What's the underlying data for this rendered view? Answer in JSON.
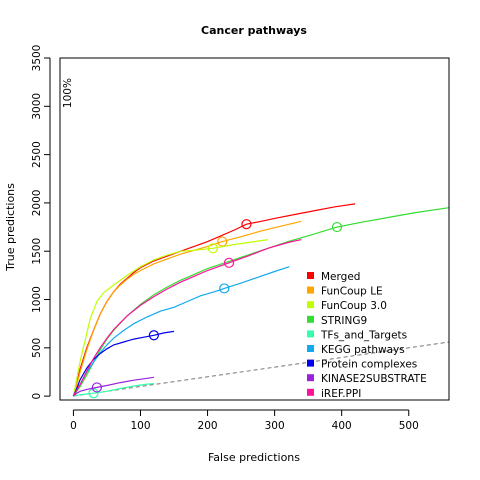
{
  "chart_data": {
    "type": "line",
    "title": "Cancer pathways",
    "xlabel": "False predictions",
    "ylabel": "True predictions",
    "xlim": [
      -20,
      560
    ],
    "ylim": [
      -40,
      3500
    ],
    "xticks": [
      0,
      100,
      200,
      300,
      400,
      500
    ],
    "yticks": [
      0,
      500,
      1000,
      1500,
      2000,
      2500,
      3000,
      3500
    ],
    "grid": false,
    "legend_position": "bottom-right",
    "annotation": {
      "text": "100%",
      "x": 2,
      "y": 3220
    },
    "reference_line": {
      "style": "dashed",
      "color": "#777777",
      "points": [
        [
          0,
          0
        ],
        [
          560,
          560
        ]
      ]
    },
    "series": [
      {
        "name": "Merged",
        "color": "#ff0000",
        "marker": [
          258,
          1780
        ],
        "points": [
          [
            0,
            0
          ],
          [
            5,
            150
          ],
          [
            10,
            280
          ],
          [
            20,
            500
          ],
          [
            30,
            680
          ],
          [
            40,
            850
          ],
          [
            50,
            980
          ],
          [
            60,
            1080
          ],
          [
            70,
            1160
          ],
          [
            80,
            1220
          ],
          [
            90,
            1280
          ],
          [
            100,
            1330
          ],
          [
            120,
            1400
          ],
          [
            140,
            1450
          ],
          [
            160,
            1500
          ],
          [
            180,
            1550
          ],
          [
            200,
            1600
          ],
          [
            220,
            1660
          ],
          [
            240,
            1720
          ],
          [
            258,
            1780
          ],
          [
            280,
            1810
          ],
          [
            300,
            1840
          ],
          [
            330,
            1880
          ],
          [
            360,
            1920
          ],
          [
            390,
            1960
          ],
          [
            420,
            1990
          ]
        ]
      },
      {
        "name": "FunCoup LE",
        "color": "#ffa500",
        "marker": [
          222,
          1600
        ],
        "points": [
          [
            0,
            0
          ],
          [
            5,
            120
          ],
          [
            10,
            250
          ],
          [
            20,
            480
          ],
          [
            30,
            680
          ],
          [
            40,
            850
          ],
          [
            50,
            980
          ],
          [
            60,
            1080
          ],
          [
            70,
            1150
          ],
          [
            80,
            1210
          ],
          [
            90,
            1260
          ],
          [
            100,
            1300
          ],
          [
            120,
            1370
          ],
          [
            140,
            1420
          ],
          [
            160,
            1470
          ],
          [
            180,
            1510
          ],
          [
            200,
            1550
          ],
          [
            222,
            1600
          ],
          [
            250,
            1650
          ],
          [
            280,
            1710
          ],
          [
            310,
            1760
          ],
          [
            340,
            1810
          ]
        ]
      },
      {
        "name": "FunCoup 3.0",
        "color": "#bfff00",
        "marker": [
          208,
          1530
        ],
        "points": [
          [
            0,
            0
          ],
          [
            5,
            180
          ],
          [
            10,
            360
          ],
          [
            20,
            650
          ],
          [
            25,
            800
          ],
          [
            35,
            980
          ],
          [
            45,
            1070
          ],
          [
            60,
            1150
          ],
          [
            80,
            1250
          ],
          [
            100,
            1340
          ],
          [
            120,
            1410
          ],
          [
            140,
            1460
          ],
          [
            160,
            1500
          ],
          [
            180,
            1510
          ],
          [
            208,
            1530
          ],
          [
            240,
            1570
          ],
          [
            270,
            1600
          ],
          [
            290,
            1620
          ]
        ]
      },
      {
        "name": "STRING9",
        "color": "#33dd33",
        "marker": [
          393,
          1750
        ],
        "points": [
          [
            0,
            0
          ],
          [
            10,
            100
          ],
          [
            20,
            220
          ],
          [
            30,
            350
          ],
          [
            40,
            480
          ],
          [
            50,
            590
          ],
          [
            60,
            680
          ],
          [
            80,
            830
          ],
          [
            100,
            950
          ],
          [
            120,
            1050
          ],
          [
            140,
            1130
          ],
          [
            160,
            1200
          ],
          [
            180,
            1260
          ],
          [
            200,
            1320
          ],
          [
            230,
            1390
          ],
          [
            260,
            1460
          ],
          [
            290,
            1530
          ],
          [
            320,
            1600
          ],
          [
            350,
            1660
          ],
          [
            393,
            1750
          ],
          [
            430,
            1800
          ],
          [
            470,
            1850
          ],
          [
            510,
            1900
          ],
          [
            560,
            1950
          ]
        ]
      },
      {
        "name": "TFs_and_Targets",
        "color": "#33ffaa",
        "marker": [
          30,
          30
        ],
        "points": [
          [
            0,
            0
          ],
          [
            5,
            8
          ],
          [
            10,
            15
          ],
          [
            20,
            22
          ],
          [
            30,
            30
          ],
          [
            45,
            45
          ],
          [
            60,
            65
          ],
          [
            75,
            85
          ],
          [
            90,
            105
          ],
          [
            110,
            125
          ],
          [
            120,
            130
          ]
        ]
      },
      {
        "name": "KEGG pathways",
        "color": "#11aaee",
        "marker": [
          225,
          1115
        ],
        "points": [
          [
            0,
            0
          ],
          [
            10,
            120
          ],
          [
            20,
            250
          ],
          [
            30,
            350
          ],
          [
            40,
            450
          ],
          [
            50,
            530
          ],
          [
            60,
            600
          ],
          [
            75,
            680
          ],
          [
            90,
            750
          ],
          [
            110,
            820
          ],
          [
            130,
            880
          ],
          [
            150,
            920
          ],
          [
            170,
            980
          ],
          [
            190,
            1040
          ],
          [
            210,
            1080
          ],
          [
            225,
            1115
          ],
          [
            250,
            1170
          ],
          [
            275,
            1230
          ],
          [
            300,
            1290
          ],
          [
            322,
            1340
          ]
        ]
      },
      {
        "name": "Protein complexes",
        "color": "#0000ee",
        "marker": [
          120,
          630
        ],
        "points": [
          [
            0,
            0
          ],
          [
            5,
            80
          ],
          [
            10,
            170
          ],
          [
            20,
            290
          ],
          [
            30,
            380
          ],
          [
            40,
            440
          ],
          [
            50,
            490
          ],
          [
            60,
            530
          ],
          [
            75,
            560
          ],
          [
            90,
            590
          ],
          [
            105,
            610
          ],
          [
            120,
            630
          ],
          [
            135,
            655
          ],
          [
            150,
            670
          ]
        ]
      },
      {
        "name": "KINASE2SUBSTRATE",
        "color": "#9922dd",
        "marker": [
          35,
          90
        ],
        "points": [
          [
            0,
            0
          ],
          [
            5,
            30
          ],
          [
            10,
            50
          ],
          [
            20,
            70
          ],
          [
            35,
            90
          ],
          [
            50,
            110
          ],
          [
            70,
            140
          ],
          [
            90,
            165
          ],
          [
            110,
            185
          ],
          [
            120,
            195
          ]
        ]
      },
      {
        "name": "iREF.PPI",
        "color": "#ff1199",
        "marker": [
          232,
          1380
        ],
        "points": [
          [
            0,
            0
          ],
          [
            10,
            120
          ],
          [
            20,
            260
          ],
          [
            30,
            390
          ],
          [
            40,
            500
          ],
          [
            50,
            600
          ],
          [
            60,
            690
          ],
          [
            70,
            760
          ],
          [
            80,
            830
          ],
          [
            100,
            940
          ],
          [
            120,
            1030
          ],
          [
            140,
            1110
          ],
          [
            160,
            1180
          ],
          [
            180,
            1240
          ],
          [
            200,
            1300
          ],
          [
            232,
            1380
          ],
          [
            260,
            1450
          ],
          [
            290,
            1530
          ],
          [
            320,
            1590
          ],
          [
            340,
            1620
          ]
        ]
      }
    ]
  }
}
